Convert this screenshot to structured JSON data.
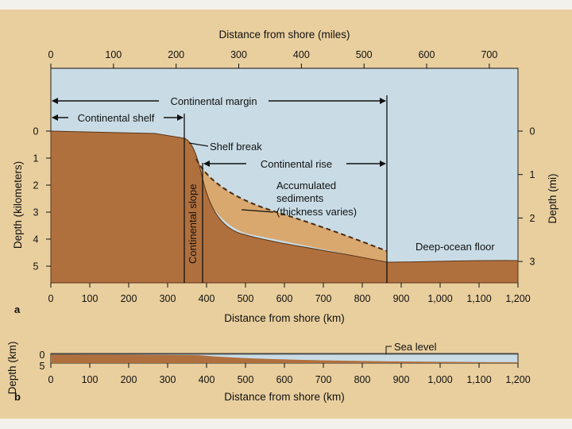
{
  "top_axis": {
    "title": "Distance from shore (miles)",
    "ticks": [
      "0",
      "100",
      "200",
      "300",
      "400",
      "500",
      "600",
      "700"
    ]
  },
  "bottom_axis": {
    "title": "Distance from shore (km)",
    "ticks": [
      "0",
      "100",
      "200",
      "300",
      "400",
      "500",
      "600",
      "700",
      "800",
      "900",
      "1,000",
      "1,100",
      "1,200"
    ]
  },
  "left_axis": {
    "title": "Depth (kilometers)",
    "ticks": [
      "0",
      "1",
      "2",
      "3",
      "4",
      "5"
    ]
  },
  "right_axis": {
    "title": "Depth (mi)",
    "ticks": [
      "0",
      "1",
      "2",
      "3"
    ]
  },
  "labels": {
    "continental_margin": "Continental margin",
    "continental_shelf": "Continental shelf",
    "shelf_break": "Shelf break",
    "continental_rise": "Continental rise",
    "sediments": [
      "Accumulated",
      "sediments",
      "(thickness varies)"
    ],
    "continental_slope": "Continental slope",
    "deep_ocean_floor": "Deep-ocean floor",
    "sea_level": "Sea level"
  },
  "panel_letters": {
    "a": "a",
    "b": "b"
  },
  "panel_b": {
    "ylabel": "Depth (km)",
    "yticks": [
      "0",
      "5"
    ],
    "xticks": [
      "0",
      "100",
      "200",
      "300",
      "400",
      "500",
      "600",
      "700",
      "800",
      "900",
      "1,000",
      "1,100",
      "1,200"
    ],
    "xlabel": "Distance from shore (km)"
  },
  "colors": {
    "sea": "#c9dce6",
    "rock": "#b0703e",
    "sediment": "#d9a86f",
    "frame_bg": "#e9cf9e"
  }
}
